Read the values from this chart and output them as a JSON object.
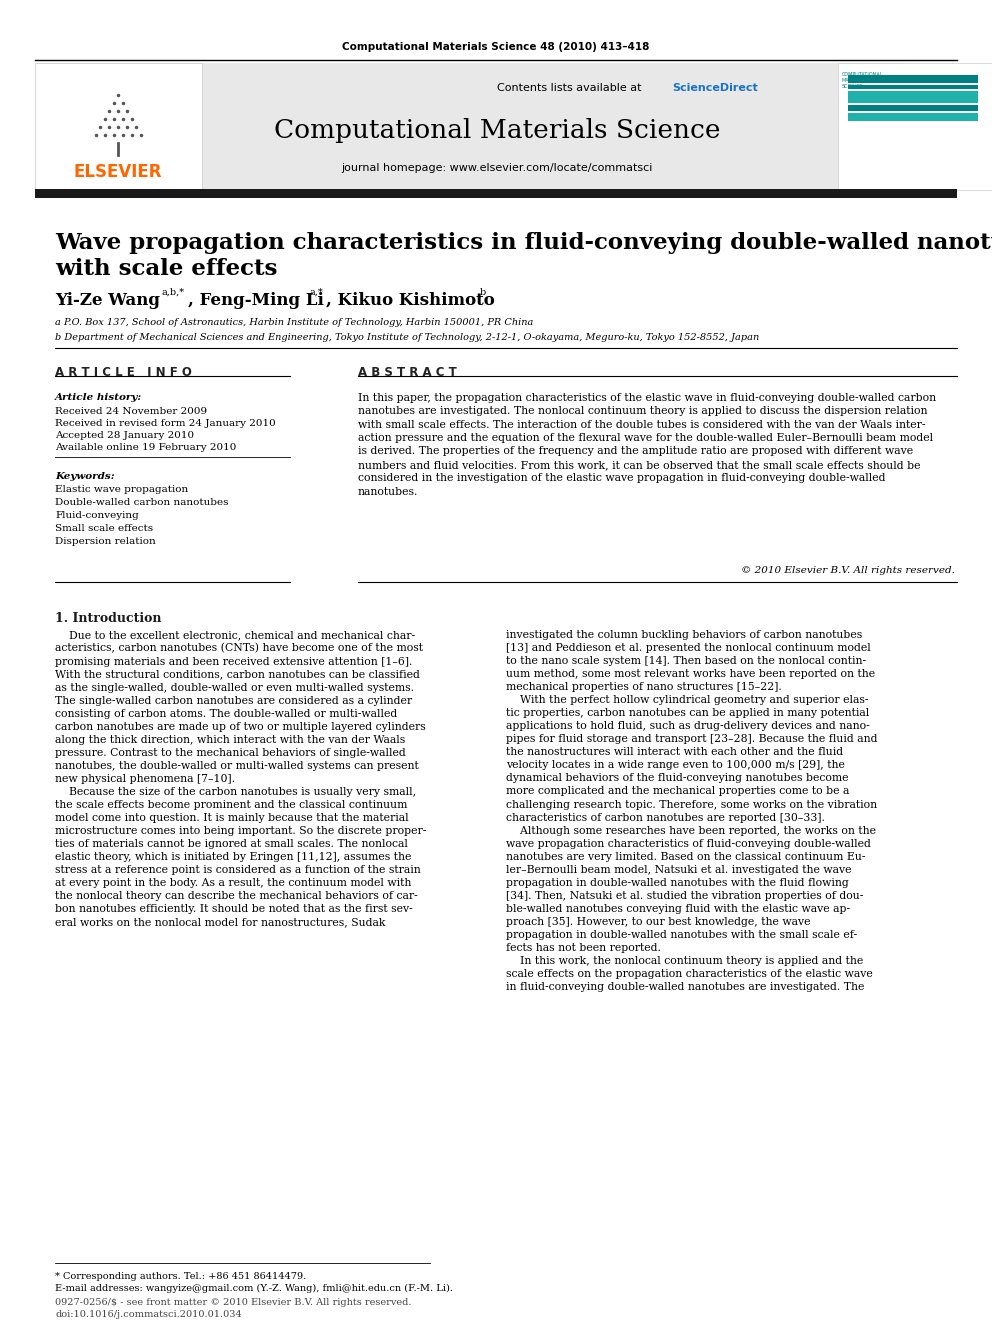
{
  "journal_line": "Computational Materials Science 48 (2010) 413–418",
  "contents_line": "Contents lists available at ScienceDirect",
  "sciencedirect_color": "#1a73c9",
  "journal_name": "Computational Materials Science",
  "journal_homepage": "journal homepage: www.elsevier.com/locate/commatsci",
  "title_line1": "Wave propagation characteristics in fluid-conveying double-walled nanotubes",
  "title_line2": "with scale effects",
  "affil_a": "a P.O. Box 137, School of Astronautics, Harbin Institute of Technology, Harbin 150001, PR China",
  "affil_b": "b Department of Mechanical Sciences and Engineering, Tokyo Institute of Technology, 2-12-1, O-okayama, Meguro-ku, Tokyo 152-8552, Japan",
  "article_info_header": "A R T I C L E   I N F O",
  "abstract_header": "A B S T R A C T",
  "article_history_label": "Article history:",
  "received1": "Received 24 November 2009",
  "received2": "Received in revised form 24 January 2010",
  "accepted": "Accepted 28 January 2010",
  "available": "Available online 19 February 2010",
  "keywords_label": "Keywords:",
  "keywords": [
    "Elastic wave propagation",
    "Double-walled carbon nanotubes",
    "Fluid-conveying",
    "Small scale effects",
    "Dispersion relation"
  ],
  "abstract_text": "In this paper, the propagation characteristics of the elastic wave in fluid-conveying double-walled carbon\nnanotubes are investigated. The nonlocal continuum theory is applied to discuss the dispersion relation\nwith small scale effects. The interaction of the double tubes is considered with the van der Waals inter-\naction pressure and the equation of the flexural wave for the double-walled Euler–Bernoulli beam model\nis derived. The properties of the frequency and the amplitude ratio are proposed with different wave\nnumbers and fluid velocities. From this work, it can be observed that the small scale effects should be\nconsidered in the investigation of the elastic wave propagation in fluid-conveying double-walled\nnanotubes.",
  "copyright": "© 2010 Elsevier B.V. All rights reserved.",
  "section1_title": "1. Introduction",
  "footnote_star": "* Corresponding authors. Tel.: +86 451 86414479.",
  "footnote_email": "E-mail addresses: wangyize@gmail.com (Y.-Z. Wang), fmli@hit.edu.cn (F.-M. Li).",
  "footer_line1": "0927-0256/$ - see front matter © 2010 Elsevier B.V. All rights reserved.",
  "footer_line2": "doi:10.1016/j.commatsci.2010.01.034",
  "bg_color": "#ffffff",
  "header_bg": "#e8e8e8",
  "thick_bar_color": "#1a1a1a",
  "elsevier_orange": "#ff6600",
  "link_color": "#1a73c9"
}
